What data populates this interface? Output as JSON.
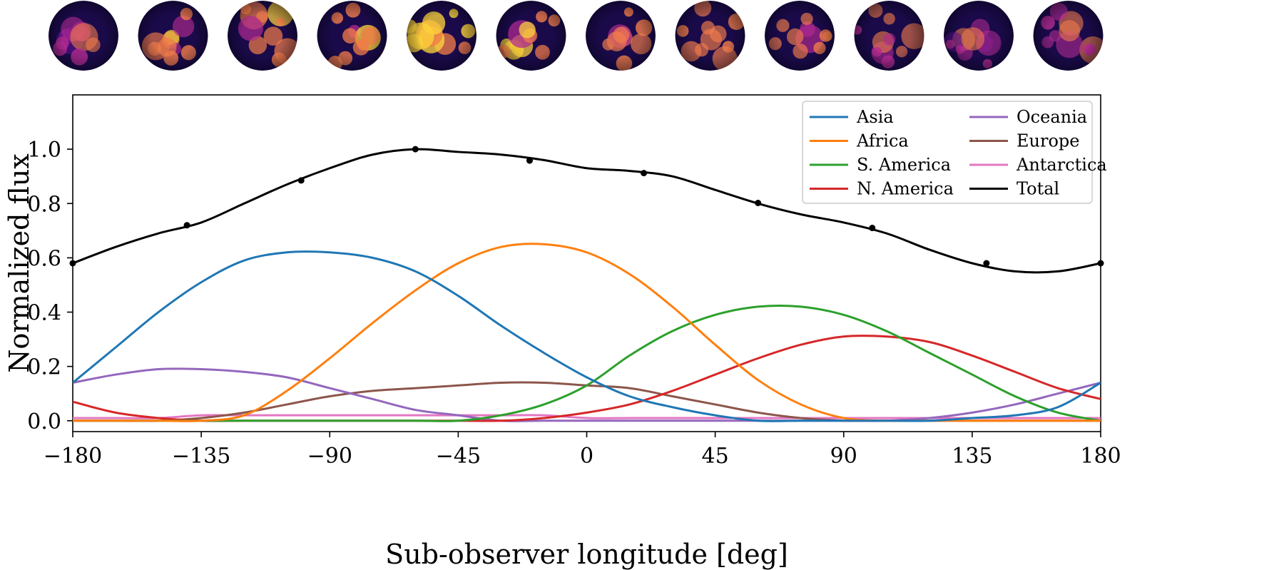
{
  "chart_data": {
    "type": "line",
    "xlabel": "Sub-observer longitude [deg]",
    "ylabel": "Normalized flux",
    "xlim": [
      -180,
      180
    ],
    "ylim": [
      -0.04,
      1.2
    ],
    "xticks": [
      -180,
      -135,
      -90,
      -45,
      0,
      45,
      90,
      135,
      180
    ],
    "xtick_labels": [
      "−180",
      "−135",
      "−90",
      "−45",
      "0",
      "45",
      "90",
      "135",
      "180"
    ],
    "yticks": [
      0.0,
      0.2,
      0.4,
      0.6,
      0.8,
      1.0
    ],
    "ytick_labels": [
      "0.0",
      "0.2",
      "0.4",
      "0.6",
      "0.8",
      "1.0"
    ],
    "legend_position": "top-right",
    "x": [
      -180,
      -165,
      -150,
      -135,
      -120,
      -105,
      -90,
      -75,
      -60,
      -45,
      -30,
      -15,
      0,
      15,
      30,
      45,
      60,
      75,
      90,
      105,
      120,
      135,
      150,
      165,
      180
    ],
    "series": [
      {
        "name": "Asia",
        "color": "#1f77b4",
        "values": [
          0.14,
          0.27,
          0.4,
          0.51,
          0.59,
          0.62,
          0.62,
          0.6,
          0.55,
          0.46,
          0.35,
          0.25,
          0.16,
          0.09,
          0.05,
          0.02,
          0.0,
          0.0,
          0.0,
          0.0,
          0.0,
          0.01,
          0.02,
          0.05,
          0.14
        ]
      },
      {
        "name": "Africa",
        "color": "#ff7f0e",
        "values": [
          0.0,
          0.0,
          0.0,
          0.0,
          0.02,
          0.11,
          0.23,
          0.36,
          0.48,
          0.58,
          0.64,
          0.65,
          0.62,
          0.54,
          0.42,
          0.28,
          0.15,
          0.06,
          0.01,
          0.0,
          0.0,
          0.0,
          0.0,
          0.0,
          0.0
        ]
      },
      {
        "name": "S. America",
        "color": "#2ca02c",
        "values": [
          0.0,
          0.0,
          0.0,
          0.0,
          0.0,
          0.0,
          0.0,
          0.0,
          0.0,
          0.0,
          0.02,
          0.06,
          0.13,
          0.24,
          0.33,
          0.39,
          0.42,
          0.42,
          0.39,
          0.33,
          0.25,
          0.17,
          0.09,
          0.03,
          0.0
        ]
      },
      {
        "name": "N. America",
        "color": "#d62728",
        "values": [
          0.07,
          0.03,
          0.01,
          0.0,
          0.0,
          0.0,
          0.0,
          0.0,
          0.0,
          0.0,
          0.0,
          0.01,
          0.03,
          0.06,
          0.11,
          0.17,
          0.23,
          0.28,
          0.31,
          0.31,
          0.29,
          0.24,
          0.18,
          0.12,
          0.08
        ]
      },
      {
        "name": "Oceania",
        "color": "#9467bd",
        "values": [
          0.14,
          0.17,
          0.19,
          0.19,
          0.18,
          0.16,
          0.12,
          0.08,
          0.04,
          0.02,
          0.0,
          0.0,
          0.0,
          0.0,
          0.0,
          0.0,
          0.0,
          0.0,
          0.0,
          0.0,
          0.01,
          0.03,
          0.06,
          0.1,
          0.14
        ]
      },
      {
        "name": "Europe",
        "color": "#8c564b",
        "values": [
          0.0,
          0.0,
          0.0,
          0.01,
          0.03,
          0.06,
          0.09,
          0.11,
          0.12,
          0.13,
          0.14,
          0.14,
          0.13,
          0.12,
          0.09,
          0.06,
          0.03,
          0.01,
          0.0,
          0.0,
          0.0,
          0.0,
          0.0,
          0.0,
          0.0
        ]
      },
      {
        "name": "Antarctica",
        "color": "#e377c2",
        "values": [
          0.01,
          0.01,
          0.01,
          0.02,
          0.02,
          0.02,
          0.02,
          0.02,
          0.02,
          0.02,
          0.02,
          0.02,
          0.01,
          0.01,
          0.01,
          0.01,
          0.01,
          0.01,
          0.01,
          0.01,
          0.01,
          0.01,
          0.01,
          0.01,
          0.01
        ]
      },
      {
        "name": "Total",
        "color": "#000000",
        "values": [
          0.58,
          0.64,
          0.69,
          0.73,
          0.8,
          0.87,
          0.93,
          0.98,
          1.0,
          0.99,
          0.98,
          0.96,
          0.93,
          0.92,
          0.9,
          0.85,
          0.8,
          0.76,
          0.73,
          0.69,
          0.63,
          0.58,
          0.55,
          0.55,
          0.58
        ]
      }
    ],
    "total_markers": {
      "x": [
        -180,
        -140,
        -100,
        -60,
        -20,
        20,
        60,
        100,
        140,
        180
      ],
      "y": [
        0.58,
        0.72,
        0.885,
        1.0,
        0.958,
        0.912,
        0.802,
        0.71,
        0.58,
        0.58
      ]
    },
    "legend_columns": [
      [
        "Asia",
        "Africa",
        "S. America",
        "N. America"
      ],
      [
        "Oceania",
        "Europe",
        "Antarctica",
        "Total"
      ]
    ],
    "globe_thumbnails": {
      "count": 12,
      "colormap": [
        "#1a0a4a",
        "#5b0f8f",
        "#b12a90",
        "#f07c4a",
        "#fcd33a"
      ],
      "brightness": [
        0.15,
        0.35,
        0.55,
        0.7,
        0.75,
        0.6,
        0.45,
        0.4,
        0.4,
        0.2,
        0.1,
        0.15
      ]
    }
  }
}
